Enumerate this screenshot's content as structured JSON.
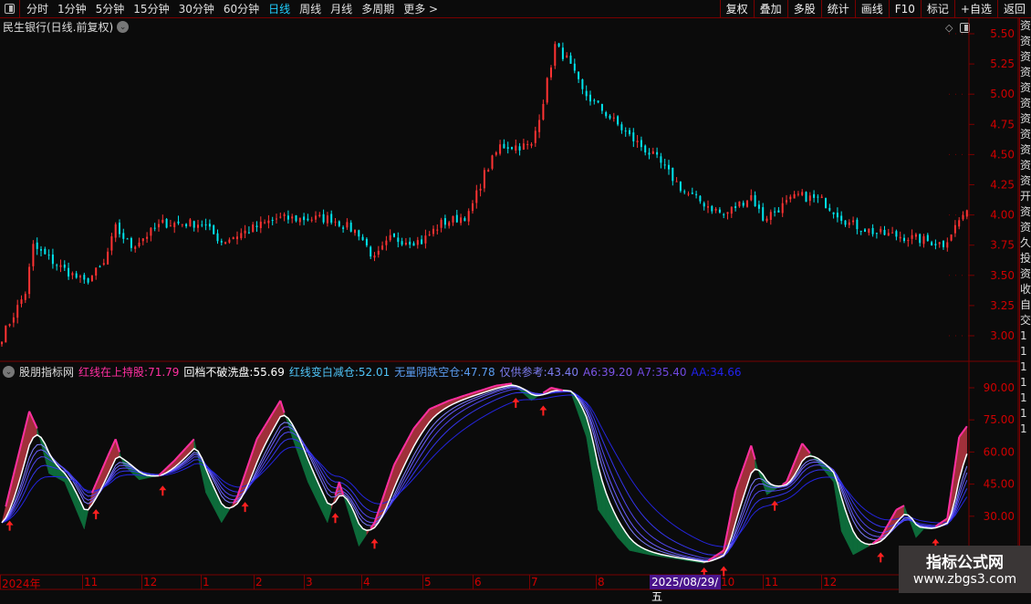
{
  "toolbar": {
    "periods": [
      "分时",
      "1分钟",
      "5分钟",
      "15分钟",
      "30分钟",
      "60分钟",
      "日线",
      "周线",
      "月线",
      "多周期",
      "更多 >"
    ],
    "active_period": "日线",
    "right": [
      "复权",
      "叠加",
      "多股",
      "统计",
      "画线",
      "F10",
      "标记",
      "+自选",
      "返回"
    ]
  },
  "title": "民生银行(日线.前复权)",
  "price_axis": {
    "ticks": [
      "5.50",
      "5.25",
      "5.00",
      "4.75",
      "4.50",
      "4.25",
      "4.00",
      "3.75",
      "3.50",
      "3.25",
      "3.00"
    ]
  },
  "indicator": {
    "name": "股朋指标网",
    "items": [
      {
        "label": "红线在上持股:",
        "value": "71.79",
        "color": "#ff2fa0"
      },
      {
        "label": "回档不破洗盘:",
        "value": "55.69",
        "color": "#ffffff"
      },
      {
        "label": "红线变白减仓:",
        "value": "52.01",
        "color": "#4fc3f7"
      },
      {
        "label": "无量阴跌空仓:",
        "value": "47.78",
        "color": "#5a9bef"
      },
      {
        "label": "仅供参考:",
        "value": "43.40",
        "color": "#7c7cf0"
      },
      {
        "label": "A6:",
        "value": "39.20",
        "color": "#7c55e8"
      },
      {
        "label": "A7:",
        "value": "35.40",
        "color": "#7048e0"
      },
      {
        "label": "AA:",
        "value": "34.66",
        "color": "#2222ee"
      }
    ],
    "axis_ticks": [
      "90.00",
      "75.00",
      "60.00",
      "45.00",
      "30.00"
    ]
  },
  "date_axis": {
    "labels": [
      "2024年",
      "11",
      "12",
      "1",
      "2",
      "3",
      "4",
      "5",
      "6",
      "7",
      "8",
      "10",
      "11",
      "12"
    ],
    "cursor": "2025/08/29/五"
  },
  "watermark": {
    "title": "指标公式网",
    "url": "www.zbgs3.com"
  },
  "colors": {
    "up": "#ff3333",
    "down": "#00e5ee",
    "grid": "#7a0000",
    "bull_fill": "#a0303a",
    "bear_fill": "#0d6b3a"
  },
  "chart_data": {
    "type": "candlestick",
    "price_keypoints": [
      [
        0,
        2.99
      ],
      [
        6,
        3.36
      ],
      [
        8,
        3.74
      ],
      [
        14,
        3.59
      ],
      [
        21,
        3.44
      ],
      [
        26,
        3.59
      ],
      [
        29,
        3.89
      ],
      [
        33,
        3.74
      ],
      [
        41,
        3.93
      ],
      [
        51,
        3.93
      ],
      [
        56,
        3.78
      ],
      [
        70,
        3.97
      ],
      [
        84,
        3.97
      ],
      [
        91,
        3.85
      ],
      [
        95,
        3.63
      ],
      [
        99,
        3.8
      ],
      [
        107,
        3.78
      ],
      [
        112,
        3.93
      ],
      [
        119,
        4.0
      ],
      [
        123,
        4.34
      ],
      [
        127,
        4.57
      ],
      [
        135,
        4.57
      ],
      [
        138,
        4.95
      ],
      [
        141,
        5.4
      ],
      [
        144,
        5.29
      ],
      [
        148,
        5.02
      ],
      [
        153,
        4.87
      ],
      [
        160,
        4.65
      ],
      [
        167,
        4.46
      ],
      [
        174,
        4.19
      ],
      [
        184,
        4.0
      ],
      [
        191,
        4.16
      ],
      [
        194,
        3.97
      ],
      [
        203,
        4.16
      ],
      [
        209,
        4.12
      ],
      [
        216,
        3.93
      ],
      [
        223,
        3.85
      ],
      [
        230,
        3.82
      ],
      [
        240,
        3.76
      ],
      [
        245,
        4.0
      ]
    ],
    "indicator_keypoints": [
      [
        0,
        27
      ],
      [
        2,
        42
      ],
      [
        7,
        79
      ],
      [
        9,
        71
      ],
      [
        12,
        50
      ],
      [
        16,
        46
      ],
      [
        21,
        24
      ],
      [
        23,
        41
      ],
      [
        27,
        58
      ],
      [
        29,
        66
      ],
      [
        31,
        54
      ],
      [
        35,
        47
      ],
      [
        40,
        49
      ],
      [
        44,
        56
      ],
      [
        49,
        66
      ],
      [
        52,
        41
      ],
      [
        56,
        27
      ],
      [
        60,
        39
      ],
      [
        65,
        66
      ],
      [
        71,
        84
      ],
      [
        74,
        67
      ],
      [
        78,
        46
      ],
      [
        83,
        27
      ],
      [
        86,
        46
      ],
      [
        91,
        16
      ],
      [
        95,
        27
      ],
      [
        100,
        54
      ],
      [
        105,
        71
      ],
      [
        109,
        80
      ],
      [
        114,
        84
      ],
      [
        119,
        87
      ],
      [
        126,
        91
      ],
      [
        130,
        92
      ],
      [
        135,
        84
      ],
      [
        140,
        90
      ],
      [
        145,
        88
      ],
      [
        149,
        67
      ],
      [
        152,
        33
      ],
      [
        157,
        20
      ],
      [
        160,
        14
      ],
      [
        165,
        12
      ],
      [
        172,
        10
      ],
      [
        179,
        8
      ],
      [
        184,
        14
      ],
      [
        187,
        42
      ],
      [
        191,
        63
      ],
      [
        193,
        50
      ],
      [
        195,
        40
      ],
      [
        200,
        46
      ],
      [
        204,
        64
      ],
      [
        208,
        55
      ],
      [
        212,
        46
      ],
      [
        214,
        23
      ],
      [
        217,
        12
      ],
      [
        221,
        16
      ],
      [
        224,
        20
      ],
      [
        228,
        33
      ],
      [
        230,
        35
      ],
      [
        233,
        20
      ],
      [
        235,
        24
      ],
      [
        237,
        24
      ],
      [
        241,
        29
      ],
      [
        244,
        67
      ],
      [
        246,
        72
      ]
    ],
    "signal_arrows": [
      2,
      24,
      41,
      62,
      85,
      95,
      131,
      138,
      179,
      184,
      197,
      224,
      238
    ],
    "ylim_price": [
      2.9,
      5.6
    ],
    "ylim_indicator": [
      10,
      95
    ]
  }
}
